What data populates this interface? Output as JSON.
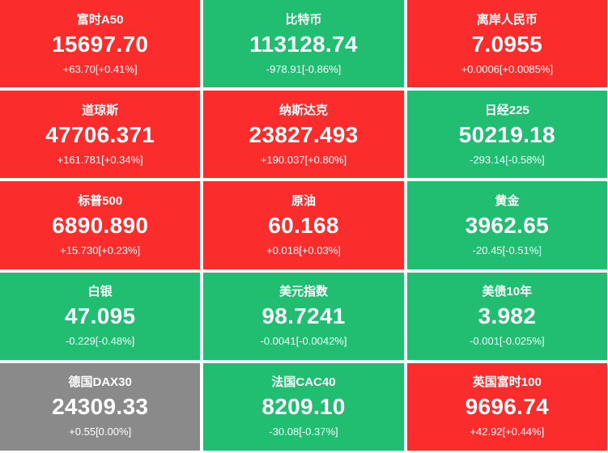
{
  "palette": {
    "red": "#fa2c2c",
    "green": "#21bd71",
    "gray": "#8a8a8a"
  },
  "tiles": [
    {
      "name": "富时A50",
      "value": "15697.70",
      "change": "+63.70[+0.41%]",
      "color": "red"
    },
    {
      "name": "比特币",
      "value": "113128.74",
      "change": "-978.91[-0.86%]",
      "color": "green"
    },
    {
      "name": "离岸人民币",
      "value": "7.0955",
      "change": "+0.0006[+0.0085%]",
      "color": "red"
    },
    {
      "name": "道琼斯",
      "value": "47706.371",
      "change": "+161.781[+0.34%]",
      "color": "red"
    },
    {
      "name": "纳斯达克",
      "value": "23827.493",
      "change": "+190.037[+0.80%]",
      "color": "red"
    },
    {
      "name": "日经225",
      "value": "50219.18",
      "change": "-293.14[-0.58%]",
      "color": "green"
    },
    {
      "name": "标普500",
      "value": "6890.890",
      "change": "+15.730[+0.23%]",
      "color": "red"
    },
    {
      "name": "原油",
      "value": "60.168",
      "change": "+0.018[+0.03%]",
      "color": "red"
    },
    {
      "name": "黄金",
      "value": "3962.65",
      "change": "-20.45[-0.51%]",
      "color": "green"
    },
    {
      "name": "白银",
      "value": "47.095",
      "change": "-0.229[-0.48%]",
      "color": "green"
    },
    {
      "name": "美元指数",
      "value": "98.7241",
      "change": "-0.0041[-0.0042%]",
      "color": "green"
    },
    {
      "name": "美债10年",
      "value": "3.982",
      "change": "-0.001[-0.025%]",
      "color": "green"
    },
    {
      "name": "德国DAX30",
      "value": "24309.33",
      "change": "+0.55[0.00%]",
      "color": "gray"
    },
    {
      "name": "法国CAC40",
      "value": "8209.10",
      "change": "-30.08[-0.37%]",
      "color": "green"
    },
    {
      "name": "英国富时100",
      "value": "9696.74",
      "change": "+42.92[+0.44%]",
      "color": "red"
    }
  ]
}
